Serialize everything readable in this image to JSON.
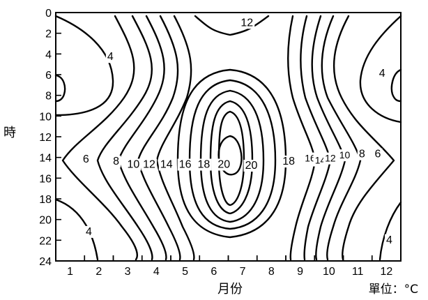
{
  "chart_data": {
    "type": "contour",
    "x_axis": {
      "label": "月份",
      "ticks": [
        "1",
        "2",
        "3",
        "4",
        "5",
        "6",
        "7",
        "8",
        "9",
        "10",
        "11",
        "12"
      ],
      "range": [
        0.5,
        12.5
      ]
    },
    "y_axis": {
      "label": "時",
      "ticks": [
        "0",
        "2",
        "4",
        "6",
        "8",
        "10",
        "12",
        "14",
        "16",
        "18",
        "20",
        "22",
        "24"
      ],
      "range": [
        0,
        24
      ],
      "inverted": true
    },
    "unit": "單位：°C",
    "contour_labels": [
      {
        "text": "12",
        "month": 7.15,
        "hour": 1.3
      },
      {
        "text": "4",
        "month": 2.4,
        "hour": 4.6
      },
      {
        "text": "4",
        "month": 11.85,
        "hour": 6.2
      },
      {
        "text": "6",
        "month": 1.55,
        "hour": 14.5
      },
      {
        "text": "8",
        "month": 2.6,
        "hour": 14.7
      },
      {
        "text": "10",
        "month": 3.2,
        "hour": 15
      },
      {
        "text": "12",
        "month": 3.75,
        "hour": 15
      },
      {
        "text": "14",
        "month": 4.35,
        "hour": 15
      },
      {
        "text": "16",
        "month": 5.0,
        "hour": 15
      },
      {
        "text": "18",
        "month": 5.65,
        "hour": 15
      },
      {
        "text": "20",
        "month": 6.35,
        "hour": 15
      },
      {
        "text": "20",
        "month": 7.3,
        "hour": 15.1
      },
      {
        "text": "18",
        "month": 8.6,
        "hour": 14.7
      },
      {
        "text": "16",
        "month": 9.35,
        "hour": 14.4
      },
      {
        "text": "14",
        "month": 9.7,
        "hour": 14.6
      },
      {
        "text": "12",
        "month": 10.05,
        "hour": 14.4
      },
      {
        "text": "10",
        "month": 10.55,
        "hour": 14.1
      },
      {
        "text": "8",
        "month": 11.15,
        "hour": 14.0
      },
      {
        "text": "6",
        "month": 11.7,
        "hour": 14.0
      },
      {
        "text": "4",
        "month": 1.65,
        "hour": 21.5
      },
      {
        "text": "4",
        "month": 12.1,
        "hour": 22.3
      }
    ]
  }
}
